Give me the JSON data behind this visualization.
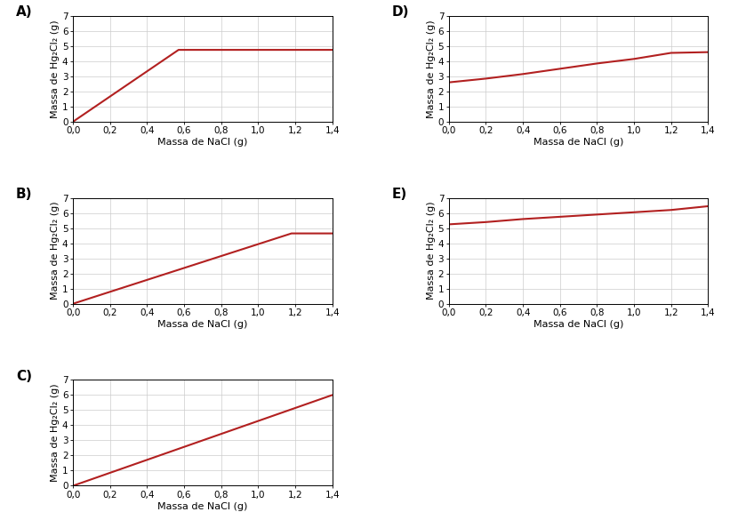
{
  "line_color": "#b22020",
  "line_width": 1.5,
  "xlabel": "Massa de NaCl (g)",
  "ylabel": "Massa de Hg₂Cl₂ (g)",
  "xlim": [
    0.0,
    1.4
  ],
  "ylim": [
    0,
    7
  ],
  "xticks": [
    0.0,
    0.2,
    0.4,
    0.6,
    0.8,
    1.0,
    1.2,
    1.4
  ],
  "yticks": [
    0,
    1,
    2,
    3,
    4,
    5,
    6,
    7
  ],
  "plots": {
    "A": {
      "x": [
        0.0,
        0.57,
        1.4
      ],
      "y": [
        0.0,
        4.75,
        4.75
      ],
      "curve": false
    },
    "B": {
      "x": [
        0.0,
        1.18,
        1.4
      ],
      "y": [
        0.0,
        4.65,
        4.65
      ],
      "curve": false
    },
    "C": {
      "x": [
        0.0,
        1.4
      ],
      "y": [
        0.0,
        6.0
      ],
      "curve": false
    },
    "D": {
      "x": [
        0.0,
        0.2,
        0.4,
        0.6,
        0.8,
        1.0,
        1.2,
        1.4
      ],
      "y": [
        2.6,
        2.85,
        3.15,
        3.5,
        3.85,
        4.15,
        4.55,
        4.6
      ],
      "curve": true
    },
    "E": {
      "x": [
        0.0,
        0.2,
        0.4,
        0.6,
        0.8,
        1.0,
        1.2,
        1.4
      ],
      "y": [
        5.25,
        5.4,
        5.6,
        5.75,
        5.9,
        6.05,
        6.2,
        6.45
      ],
      "curve": true
    }
  },
  "labels": [
    "A",
    "B",
    "C",
    "D",
    "E"
  ],
  "label_positions": {
    "A": "left",
    "B": "left",
    "C": "left",
    "D": "right",
    "E": "right"
  },
  "background_color": "#ffffff",
  "grid_color": "#cccccc"
}
